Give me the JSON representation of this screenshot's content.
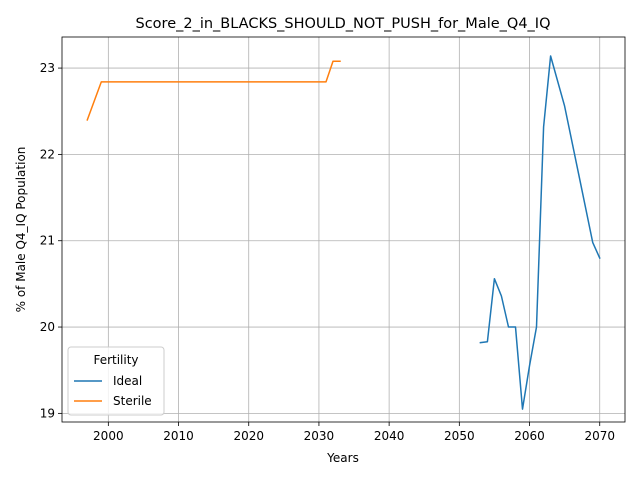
{
  "chart_data": {
    "type": "line",
    "title": "Score_2_in_BLACKS_SHOULD_NOT_PUSH_for_Male_Q4_IQ",
    "xlabel": "Years",
    "ylabel": "% of Male Q4_IQ Population",
    "xlim": [
      1993.4,
      2073.6
    ],
    "ylim": [
      18.9,
      23.36
    ],
    "xticks": [
      2000,
      2010,
      2020,
      2030,
      2040,
      2050,
      2060,
      2070
    ],
    "yticks": [
      19,
      20,
      21,
      22,
      23
    ],
    "grid": true,
    "legend": {
      "title": "Fertility",
      "placement": "lower-left"
    },
    "series": [
      {
        "name": "Ideal",
        "color": "#1f77b4",
        "x": [
          2053,
          2054,
          2055,
          2056,
          2057,
          2058,
          2059,
          2060,
          2061,
          2062,
          2063,
          2065,
          2067,
          2069,
          2070
        ],
        "y": [
          19.82,
          19.83,
          20.56,
          20.36,
          20.0,
          20.0,
          19.05,
          19.55,
          20.0,
          22.32,
          23.14,
          22.56,
          21.77,
          20.98,
          20.8
        ]
      },
      {
        "name": "Sterile",
        "color": "#ff7f0e",
        "x": [
          1997,
          1998,
          1999,
          2031,
          2032,
          2033
        ],
        "y": [
          22.4,
          22.62,
          22.84,
          22.84,
          23.08,
          23.08
        ]
      }
    ]
  }
}
